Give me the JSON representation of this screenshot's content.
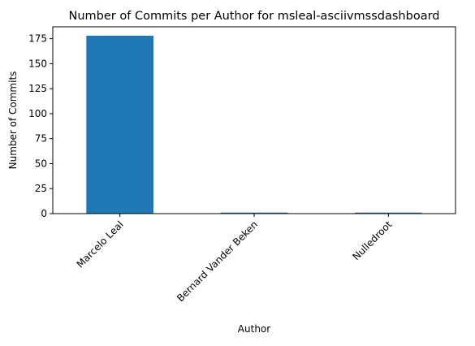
{
  "chart_data": {
    "type": "bar",
    "title": "Number of Commits per Author for msleal-asciivmssdashboard",
    "xlabel": "Author",
    "ylabel": "Number of Commits",
    "categories": [
      "Marcelo Leal",
      "Bernard Vander Beken",
      "Nulledroot"
    ],
    "values": [
      178,
      1,
      1
    ],
    "ylim": [
      0,
      186.9
    ],
    "yticks": [
      0,
      25,
      50,
      75,
      100,
      125,
      150,
      175
    ],
    "grid": false,
    "legend": "none",
    "colors": {
      "bar": "#1f77b4",
      "axis": "#000000",
      "background": "#ffffff"
    }
  }
}
